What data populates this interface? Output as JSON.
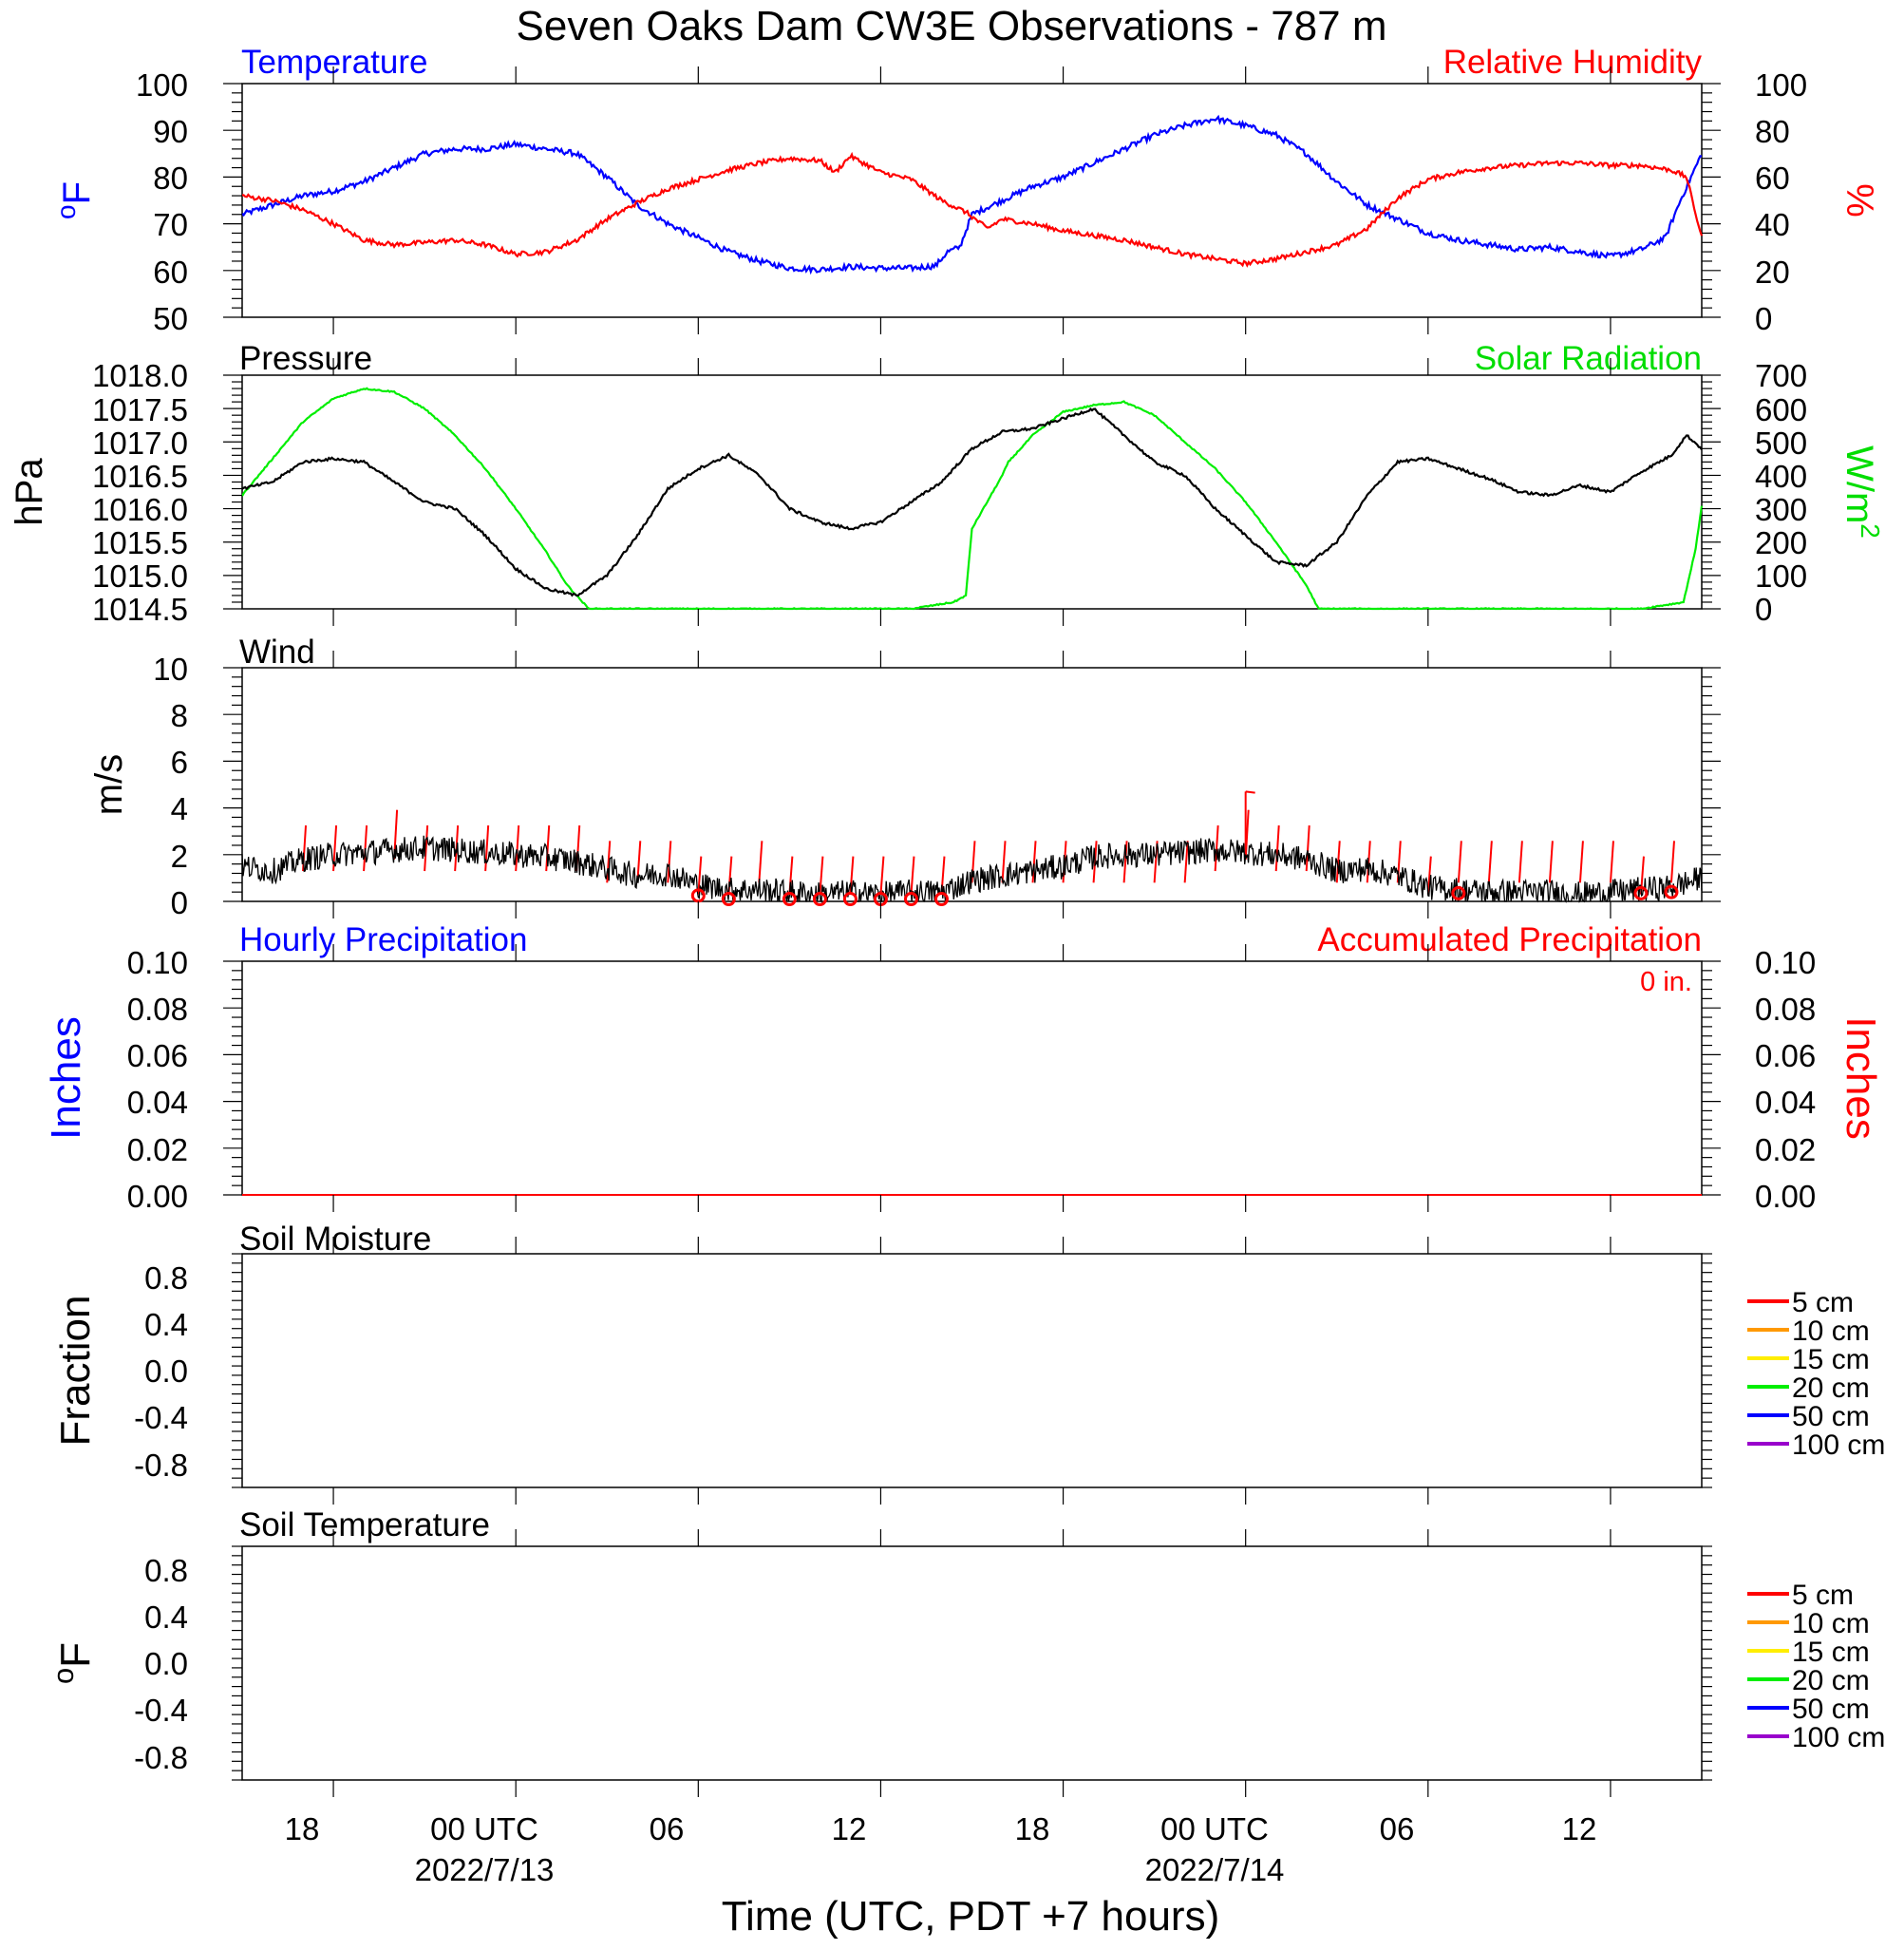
{
  "title": "Seven Oaks Dam CW3E Observations - 787 m",
  "x_axis": {
    "title": "Time (UTC, PDT +7 hours)",
    "range_hours": [
      -9,
      39
    ],
    "ticks": [
      {
        "h": -6,
        "label": "18",
        "date": ""
      },
      {
        "h": 0,
        "label": "00 UTC",
        "date": "2022/7/13"
      },
      {
        "h": 6,
        "label": "06",
        "date": ""
      },
      {
        "h": 12,
        "label": "12",
        "date": ""
      },
      {
        "h": 18,
        "label": "18",
        "date": ""
      },
      {
        "h": 24,
        "label": "00 UTC",
        "date": "2022/7/14"
      },
      {
        "h": 30,
        "label": "06",
        "date": ""
      },
      {
        "h": 36,
        "label": "12",
        "date": ""
      }
    ]
  },
  "colors": {
    "temperature": "#0000ff",
    "humidity": "#ff0000",
    "pressure": "#000000",
    "solar": "#00ee00",
    "wind": "#000000",
    "wind_barb": "#ff0000",
    "soil_5": "#ff0000",
    "soil_10": "#ff9900",
    "soil_15": "#ffee00",
    "soil_20": "#00ee00",
    "soil_50": "#0000ff",
    "soil_100": "#9900cc"
  },
  "panels": {
    "temp_rh": {
      "left_title": "Temperature",
      "right_title": "Relative Humidity",
      "left_unit": "oF",
      "right_unit": "%",
      "left_ticks": [
        "100",
        "90",
        "80",
        "70",
        "60",
        "50"
      ],
      "right_ticks": [
        "100",
        "80",
        "60",
        "40",
        "20",
        "0"
      ]
    },
    "pressure_solar": {
      "left_title": "Pressure",
      "right_title": "Solar Radiation",
      "left_unit": "hPa",
      "right_unit": "W/m2",
      "left_ticks": [
        "1018.0",
        "1017.5",
        "1017.0",
        "1016.5",
        "1016.0",
        "1015.5",
        "1015.0",
        "1014.5"
      ],
      "right_ticks": [
        "700",
        "600",
        "500",
        "400",
        "300",
        "200",
        "100",
        "0"
      ]
    },
    "wind": {
      "left_title": "Wind",
      "left_unit": "m/s",
      "left_ticks": [
        "10",
        "8",
        "6",
        "4",
        "2",
        "0"
      ]
    },
    "precip": {
      "left_title": "Hourly Precipitation",
      "right_title": "Accumulated Precipitation",
      "left_unit": "Inches",
      "right_unit": "Inches",
      "accum_label": "0 in.",
      "left_ticks": [
        "0.10",
        "0.08",
        "0.06",
        "0.04",
        "0.02",
        "0.00"
      ],
      "right_ticks": [
        "0.10",
        "0.08",
        "0.06",
        "0.04",
        "0.02",
        "0.00"
      ]
    },
    "soil_moisture": {
      "left_title": "Soil Moisture",
      "left_unit": "Fraction",
      "left_ticks": [
        "0.8",
        "0.4",
        "0.0",
        "-0.4",
        "-0.8"
      ],
      "legend": [
        "5 cm",
        "10 cm",
        "15 cm",
        "20 cm",
        "50 cm",
        "100 cm"
      ]
    },
    "soil_temp": {
      "left_title": "Soil Temperature",
      "left_unit": "oF",
      "left_ticks": [
        "0.8",
        "0.4",
        "0.0",
        "-0.4",
        "-0.8"
      ],
      "legend": [
        "5 cm",
        "10 cm",
        "15 cm",
        "20 cm",
        "50 cm",
        "100 cm"
      ]
    }
  },
  "chart_data": [
    {
      "type": "line",
      "title": "Temperature / Relative Humidity",
      "x_units": "hours since 2022/7/13 00 UTC",
      "series": [
        {
          "name": "Temperature",
          "axis": "left",
          "units": "oF",
          "ylim": [
            50,
            100
          ],
          "x": [
            -9,
            -8,
            -7,
            -6,
            -5,
            -4,
            -3,
            -2,
            -1,
            0,
            1,
            2,
            3,
            4,
            5,
            6,
            7,
            8,
            9,
            10,
            11,
            12,
            13,
            13.8,
            14.2,
            14.6,
            15,
            16,
            17,
            18,
            19,
            20,
            21,
            22,
            23,
            24,
            25,
            26,
            27,
            28,
            29,
            30,
            31,
            32,
            33,
            34,
            35,
            36,
            37,
            37.8,
            38.3,
            39
          ],
          "y": [
            72,
            74,
            76,
            77,
            79,
            82,
            85,
            86,
            86,
            87,
            86,
            85,
            80,
            74,
            70,
            67,
            64,
            62,
            60.5,
            60.2,
            60.8,
            60.5,
            60.5,
            61,
            64,
            65,
            72,
            75,
            78,
            80,
            83,
            86,
            89,
            91,
            92.5,
            91,
            89,
            85,
            79,
            74,
            71,
            68,
            66.5,
            65.5,
            64.5,
            65,
            64,
            63,
            64.5,
            67,
            75,
            85
          ]
        },
        {
          "name": "Relative Humidity",
          "axis": "right",
          "units": "%",
          "ylim": [
            0,
            100
          ],
          "x": [
            -9,
            -8,
            -7,
            -6,
            -5,
            -4,
            -3,
            -2,
            -1,
            0,
            1,
            2,
            3,
            4,
            5,
            6,
            7,
            8,
            9,
            10,
            10.5,
            11,
            12,
            13,
            14,
            14.8,
            15.5,
            16,
            17,
            18,
            19,
            20,
            21,
            22,
            23,
            24,
            25,
            26,
            27,
            28,
            29,
            30,
            31,
            32,
            33,
            34,
            35,
            36,
            37,
            38,
            38.5,
            39
          ],
          "y": [
            52,
            50,
            46,
            40,
            33,
            31,
            32,
            33,
            31,
            27,
            28,
            33,
            42,
            49,
            55,
            59,
            63,
            66,
            68,
            67,
            62,
            69,
            62,
            59,
            50,
            45,
            38,
            42,
            40,
            37,
            35,
            33,
            30,
            27,
            25,
            23,
            25,
            28,
            31,
            38,
            51,
            59,
            62,
            64,
            65,
            66,
            66,
            65,
            65,
            63,
            60,
            34
          ]
        }
      ]
    },
    {
      "type": "line",
      "title": "Pressure / Solar Radiation",
      "x_units": "hours since 2022/7/13 00 UTC",
      "series": [
        {
          "name": "Pressure",
          "axis": "left",
          "units": "hPa",
          "ylim": [
            1014.5,
            1018.0
          ],
          "x": [
            -9,
            -8,
            -7,
            -6,
            -5,
            -4,
            -3,
            -2,
            -1,
            0,
            1,
            2,
            3,
            4,
            5,
            6,
            7,
            8,
            9,
            10,
            11,
            12,
            13,
            14,
            15,
            16,
            17,
            18,
            19,
            20,
            21,
            22,
            23,
            24,
            25,
            26,
            27,
            28,
            29,
            30,
            31,
            32,
            33,
            34,
            35,
            36,
            37,
            38,
            38.5,
            39
          ],
          "y": [
            1016.3,
            1016.4,
            1016.7,
            1016.75,
            1016.7,
            1016.4,
            1016.1,
            1016.0,
            1015.6,
            1015.1,
            1014.8,
            1014.7,
            1015.0,
            1015.6,
            1016.3,
            1016.6,
            1016.8,
            1016.5,
            1016.0,
            1015.8,
            1015.7,
            1015.8,
            1016.1,
            1016.4,
            1016.9,
            1017.15,
            1017.2,
            1017.35,
            1017.5,
            1017.1,
            1016.7,
            1016.5,
            1016.0,
            1015.6,
            1015.2,
            1015.15,
            1015.5,
            1016.2,
            1016.7,
            1016.75,
            1016.6,
            1016.45,
            1016.25,
            1016.2,
            1016.35,
            1016.25,
            1016.55,
            1016.8,
            1017.1,
            1016.9
          ]
        },
        {
          "name": "Solar Radiation",
          "axis": "right",
          "units": "W/m2",
          "ylim": [
            0,
            700
          ],
          "x": [
            -9,
            -8,
            -7,
            -6,
            -5,
            -4,
            -3,
            -2,
            -1,
            0,
            1,
            1.7,
            2.4,
            13,
            14.4,
            14.8,
            15,
            16,
            16.2,
            17,
            18,
            19,
            20,
            21,
            22,
            23,
            24,
            25,
            26,
            26.4,
            37,
            38.4,
            38.8,
            39
          ],
          "y": [
            340,
            450,
            560,
            630,
            660,
            650,
            600,
            520,
            420,
            300,
            170,
            70,
            0,
            0,
            20,
            40,
            240,
            400,
            440,
            520,
            590,
            610,
            620,
            580,
            500,
            420,
            320,
            200,
            70,
            0,
            0,
            20,
            180,
            310
          ]
        }
      ]
    },
    {
      "type": "line",
      "title": "Wind",
      "x_units": "hours since 2022/7/13 00 UTC",
      "series": [
        {
          "name": "Wind speed",
          "units": "m/s",
          "ylim": [
            0,
            10
          ],
          "x": [
            -9,
            -8,
            -7,
            -6,
            -5,
            -4,
            -3,
            -2,
            -1,
            0,
            1,
            2,
            3,
            4,
            5,
            6,
            7,
            8,
            9,
            10,
            11,
            12,
            13,
            14,
            15,
            16,
            17,
            18,
            19,
            20,
            21,
            22,
            23,
            24,
            25,
            26,
            27,
            28,
            29,
            30,
            31,
            32,
            33,
            34,
            35,
            36,
            37,
            38,
            39
          ],
          "y": [
            1.5,
            1.3,
            1.8,
            2.0,
            2.1,
            2.2,
            2.3,
            2.2,
            2.1,
            2.0,
            1.9,
            1.7,
            1.4,
            1.1,
            1.2,
            0.7,
            0.5,
            0.5,
            0.4,
            0.3,
            0.4,
            0.3,
            0.4,
            0.4,
            0.9,
            1.1,
            1.3,
            1.5,
            1.9,
            2.0,
            2.0,
            2.1,
            2.2,
            2.1,
            2.0,
            1.8,
            1.3,
            1.4,
            1.1,
            0.6,
            0.5,
            0.4,
            0.4,
            0.4,
            0.3,
            0.4,
            0.5,
            0.6,
            1.0
          ]
        },
        {
          "name": "Wind barbs",
          "units": "m/s",
          "x": [
            -7,
            -6,
            -5,
            -4,
            -3,
            -2,
            -1,
            0,
            1,
            2,
            3,
            4,
            5,
            6,
            7,
            8,
            9,
            10,
            11,
            12,
            13,
            14,
            15,
            16,
            17,
            18,
            19,
            20,
            21,
            22,
            23,
            24,
            25,
            26,
            27,
            28,
            29,
            30,
            31,
            32,
            33,
            34,
            35,
            36,
            37,
            38
          ],
          "y": [
            2,
            2,
            2,
            3,
            2,
            2,
            2,
            2,
            2,
            2,
            1,
            1,
            1,
            0,
            0,
            1,
            0,
            0,
            0,
            0,
            0,
            0,
            1,
            1,
            1,
            1,
            1,
            1,
            1,
            1,
            2,
            3,
            2,
            2,
            1,
            1,
            1,
            0,
            1,
            1,
            1,
            1,
            1,
            1,
            0,
            1
          ]
        },
        {
          "name": "Calm",
          "x": [
            6,
            7,
            9,
            10,
            11,
            12,
            13,
            14,
            31,
            37,
            38
          ],
          "y": [
            0.25,
            0.1,
            0.1,
            0.1,
            0.1,
            0.1,
            0.1,
            0.1,
            0.35,
            0.35,
            0.4
          ]
        }
      ]
    },
    {
      "type": "line",
      "title": "Hourly Precipitation / Accumulated Precipitation",
      "x_units": "hours since 2022/7/13 00 UTC",
      "series": [
        {
          "name": "Hourly Precipitation",
          "units": "Inches",
          "ylim": [
            0,
            0.1
          ],
          "x": [
            -9,
            39
          ],
          "y": [
            0,
            0
          ]
        },
        {
          "name": "Accumulated Precipitation",
          "units": "Inches",
          "ylim": [
            0,
            0.1
          ],
          "x": [
            -9,
            39
          ],
          "y": [
            0,
            0
          ]
        }
      ]
    },
    {
      "type": "line",
      "title": "Soil Moisture",
      "ylim": [
        -1,
        1
      ],
      "series": [
        {
          "name": "5 cm",
          "x": [],
          "y": []
        },
        {
          "name": "10 cm",
          "x": [],
          "y": []
        },
        {
          "name": "15 cm",
          "x": [],
          "y": []
        },
        {
          "name": "20 cm",
          "x": [],
          "y": []
        },
        {
          "name": "50 cm",
          "x": [],
          "y": []
        },
        {
          "name": "100 cm",
          "x": [],
          "y": []
        }
      ]
    },
    {
      "type": "line",
      "title": "Soil Temperature",
      "ylim": [
        -1,
        1
      ],
      "series": [
        {
          "name": "5 cm",
          "x": [],
          "y": []
        },
        {
          "name": "10 cm",
          "x": [],
          "y": []
        },
        {
          "name": "15 cm",
          "x": [],
          "y": []
        },
        {
          "name": "20 cm",
          "x": [],
          "y": []
        },
        {
          "name": "50 cm",
          "x": [],
          "y": []
        },
        {
          "name": "100 cm",
          "x": [],
          "y": []
        }
      ]
    }
  ]
}
